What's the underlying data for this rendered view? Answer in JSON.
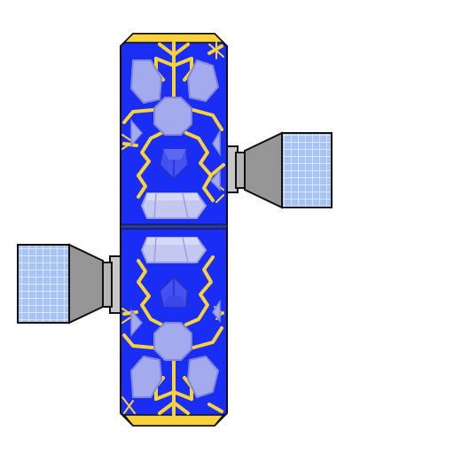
{
  "sprite": {
    "subject": "space-station",
    "colors": {
      "background": "#ffffff",
      "outline": "#111111",
      "hull": "#1a2df5",
      "hull_divider": "#2a3a9a",
      "circuit": "#f7d23a",
      "end_cap": "#f7d23a",
      "crystal": "#a4aaee",
      "crystal_shade": "#8088d6",
      "core_gem": "#4450f0",
      "core_gem_shade": "#2430c8",
      "panel_fill": "#a8c4f4",
      "panel_grid": "#ffffff",
      "strut": "#c8c8c8",
      "strut_shade": "#9a9a9a",
      "nozzle": "#969696",
      "nozzle_shade": "#7a7a7a"
    }
  }
}
